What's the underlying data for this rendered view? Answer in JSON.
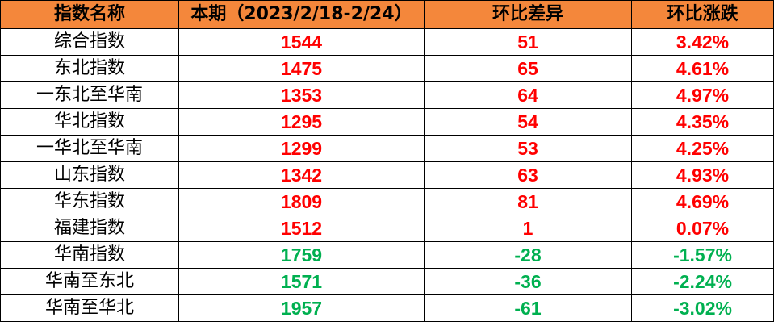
{
  "table": {
    "headers": [
      "指数名称",
      "本期（2023/2/18-2/24）",
      "环比差异",
      "环比涨跌"
    ],
    "rows": [
      [
        "综合指数",
        "1544",
        "51",
        "3.42%"
      ],
      [
        "东北指数",
        "1475",
        "65",
        "4.61%"
      ],
      [
        "一东北至华南",
        "1353",
        "64",
        "4.97%"
      ],
      [
        "华北指数",
        "1295",
        "54",
        "4.35%"
      ],
      [
        "一华北至华南",
        "1299",
        "53",
        "4.25%"
      ],
      [
        "山东指数",
        "1342",
        "63",
        "4.93%"
      ],
      [
        "华东指数",
        "1809",
        "81",
        "4.69%"
      ],
      [
        "福建指数",
        "1512",
        "1",
        "0.07%"
      ],
      [
        "华南指数",
        "1759",
        "-28",
        "-1.57%"
      ],
      [
        "华南至东北",
        "1571",
        "-36",
        "-2.24%"
      ],
      [
        "华南至华北",
        "1957",
        "-61",
        "-3.02%"
      ]
    ],
    "rise_color": "#ff0000",
    "fall_color": "#00b050",
    "header_color": "#f4873b"
  }
}
